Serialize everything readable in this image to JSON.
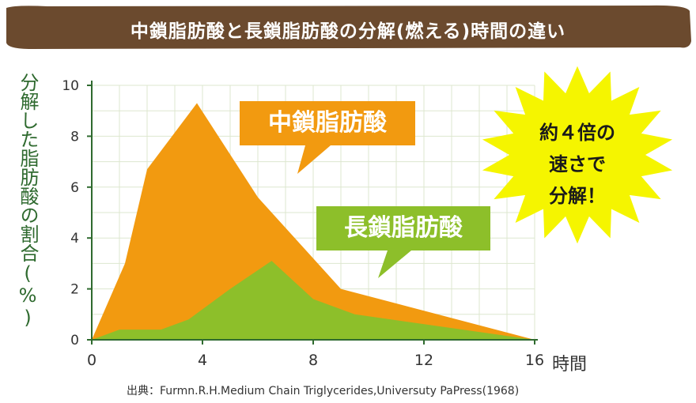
{
  "header": {
    "title": "中鎖脂肪酸と長鎖脂肪酸の分解(燃える)時間の違い"
  },
  "colors": {
    "banner": "#6b4a2e",
    "mct": "#f29a10",
    "lct": "#8dbf2a",
    "grid": "#dde7cf",
    "axis": "#2f6a2f",
    "burst": "#f5f500"
  },
  "callouts": {
    "mct": "中鎖脂肪酸",
    "lct": "長鎖脂肪酸",
    "burst": "約４倍の\n速さで\n分解！"
  },
  "source": "出典：Furmn.R.H.Medium Chain Triglycerides,Universuty PaPress(1968)",
  "chart_data": {
    "type": "area",
    "title": "",
    "xlabel": "時間",
    "ylabel": "分解した脂肪酸の割合(%)",
    "xlim": [
      0,
      16
    ],
    "ylim": [
      0,
      10
    ],
    "xticks": [
      "0",
      "4",
      "8",
      "12",
      "16"
    ],
    "yticks": [
      "0",
      "2",
      "4",
      "6",
      "8",
      "10"
    ],
    "grid": true,
    "series": [
      {
        "name": "中鎖脂肪酸",
        "x": [
          0,
          1.2,
          2.0,
          3.8,
          6.0,
          9.0,
          16.0
        ],
        "y": [
          0,
          3.0,
          6.7,
          9.3,
          5.6,
          2.0,
          0
        ]
      },
      {
        "name": "長鎖脂肪酸",
        "x": [
          0,
          1.0,
          2.5,
          3.5,
          5.0,
          6.5,
          8.0,
          9.5,
          16.0
        ],
        "y": [
          0,
          0.4,
          0.4,
          0.8,
          2.0,
          3.1,
          1.6,
          1.0,
          0
        ]
      }
    ]
  }
}
